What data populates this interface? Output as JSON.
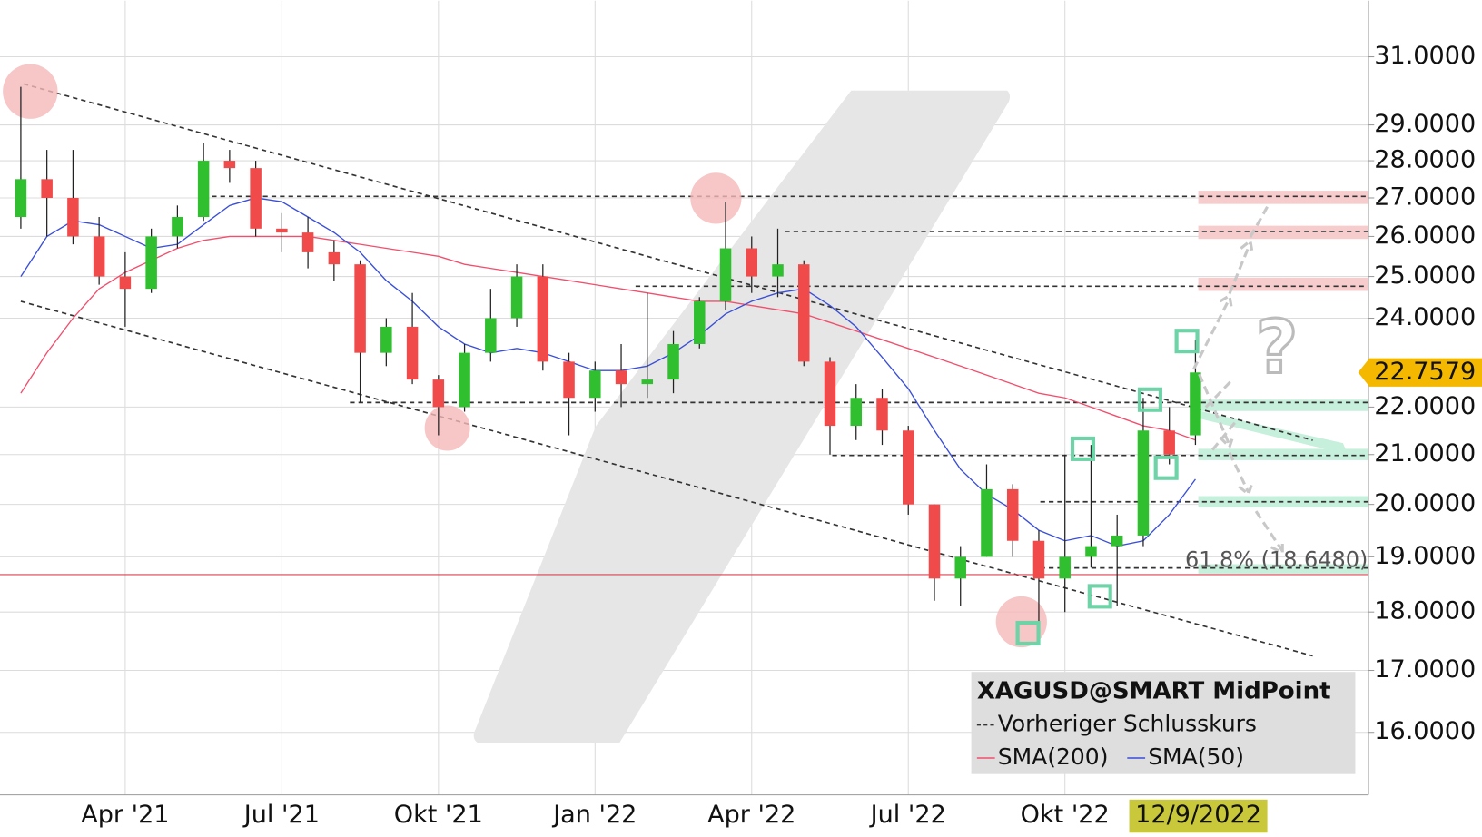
{
  "chart_data": {
    "type": "candlestick",
    "title": "XAGUSD@SMART MidPoint",
    "previous_close_label": "Vorheriger Schlusskurs",
    "categories": [
      null,
      null,
      null,
      null,
      "Apr '21",
      null,
      null,
      null,
      null,
      null,
      "Jul '21",
      null,
      null,
      null,
      null,
      null,
      "Okt '21",
      null,
      null,
      null,
      null,
      null,
      "Jan '22",
      null,
      null,
      null,
      null,
      null,
      "Apr '22",
      null,
      null,
      null,
      null,
      null,
      "Jul '22",
      null,
      null,
      null,
      null,
      null,
      "Okt '22",
      null,
      null,
      null,
      null,
      "12/9/2022"
    ],
    "open": [
      26.5,
      27.5,
      27.0,
      26.0,
      25.0,
      24.7,
      26.0,
      26.5,
      28.0,
      27.8,
      26.2,
      26.1,
      25.6,
      25.3,
      23.2,
      23.8,
      22.6,
      22.0,
      23.2,
      24.0,
      25.0,
      23.0,
      22.2,
      22.8,
      22.5,
      22.6,
      23.4,
      24.4,
      25.7,
      25.0,
      25.3,
      23.0,
      21.6,
      22.2,
      21.5,
      20.0,
      18.6,
      19.0,
      20.3,
      19.3,
      18.6,
      19.0,
      19.2,
      19.4,
      21.5,
      21.4
    ],
    "high": [
      30.1,
      28.3,
      28.3,
      26.5,
      25.6,
      26.2,
      26.8,
      28.5,
      28.3,
      28.0,
      26.6,
      26.5,
      25.9,
      25.4,
      24.0,
      24.6,
      22.7,
      23.4,
      24.7,
      25.3,
      25.3,
      23.2,
      23.0,
      23.4,
      24.6,
      23.7,
      24.5,
      26.9,
      26.0,
      26.2,
      25.4,
      23.1,
      22.5,
      22.4,
      21.6,
      20.0,
      19.2,
      20.8,
      20.4,
      19.5,
      21.0,
      21.2,
      19.8,
      22.2,
      22.0,
      23.5
    ],
    "low": [
      26.2,
      26.0,
      25.8,
      24.8,
      23.8,
      24.6,
      25.7,
      26.4,
      27.4,
      26.0,
      25.6,
      25.2,
      24.9,
      22.1,
      22.9,
      22.5,
      21.4,
      21.9,
      23.0,
      23.8,
      22.8,
      21.4,
      21.9,
      22.0,
      22.2,
      22.3,
      23.3,
      24.2,
      24.6,
      24.5,
      22.9,
      21.0,
      21.3,
      21.2,
      19.8,
      18.2,
      18.1,
      19.0,
      19.0,
      17.6,
      18.0,
      18.8,
      18.1,
      19.2,
      20.8,
      21.2
    ],
    "close": [
      27.5,
      27.0,
      26.0,
      25.0,
      24.7,
      26.0,
      26.5,
      28.0,
      27.8,
      26.2,
      26.1,
      25.6,
      25.3,
      23.2,
      23.8,
      22.6,
      22.0,
      23.2,
      24.0,
      25.0,
      23.0,
      22.2,
      22.8,
      22.5,
      22.6,
      23.4,
      24.4,
      25.7,
      25.0,
      25.3,
      23.0,
      21.6,
      22.2,
      21.5,
      20.0,
      18.6,
      19.0,
      20.3,
      19.3,
      18.6,
      19.0,
      19.2,
      19.4,
      21.5,
      21.0,
      22.7579
    ],
    "up_color": "#2fbf2f",
    "down_color": "#f04a4a",
    "series": [
      {
        "name": "SMA(200)",
        "color": "#f0506e",
        "values": [
          22.3,
          23.2,
          24.0,
          24.7,
          25.1,
          25.4,
          25.7,
          25.9,
          26.0,
          26.0,
          26.0,
          26.0,
          25.9,
          25.8,
          25.7,
          25.6,
          25.5,
          25.3,
          25.2,
          25.1,
          25.0,
          24.9,
          24.8,
          24.7,
          24.6,
          24.5,
          24.4,
          24.4,
          24.3,
          24.2,
          24.1,
          23.9,
          23.7,
          23.5,
          23.3,
          23.1,
          22.9,
          22.7,
          22.5,
          22.3,
          22.2,
          22.0,
          21.8,
          21.6,
          21.5,
          21.3
        ]
      },
      {
        "name": "SMA(50)",
        "color": "#3a4fd8",
        "values": [
          25.0,
          26.0,
          26.4,
          26.3,
          26.0,
          25.7,
          25.8,
          26.3,
          26.8,
          27.0,
          26.9,
          26.5,
          26.1,
          25.6,
          24.9,
          24.4,
          23.8,
          23.4,
          23.2,
          23.3,
          23.2,
          23.0,
          22.8,
          22.8,
          22.9,
          23.2,
          23.6,
          24.1,
          24.4,
          24.6,
          24.7,
          24.3,
          23.8,
          23.1,
          22.4,
          21.5,
          20.7,
          20.2,
          19.9,
          19.5,
          19.3,
          19.4,
          19.2,
          19.3,
          19.8,
          20.5
        ]
      }
    ],
    "ylim": [
      15.05,
      32.75
    ],
    "log_scale": true,
    "grid": true,
    "yticks": [
      {
        "value": 16,
        "label": "16.0000"
      },
      {
        "value": 17,
        "label": "17.0000"
      },
      {
        "value": 18,
        "label": "18.0000"
      },
      {
        "value": 19,
        "label": "19.0000"
      },
      {
        "value": 20,
        "label": "20.0000"
      },
      {
        "value": 21,
        "label": "21.0000"
      },
      {
        "value": 22,
        "label": "22.0000"
      },
      {
        "value": 24,
        "label": "24.0000"
      },
      {
        "value": 25,
        "label": "25.0000"
      },
      {
        "value": 26,
        "label": "26.0000"
      },
      {
        "value": 27,
        "label": "27.0000"
      },
      {
        "value": 28,
        "label": "28.0000"
      },
      {
        "value": 29,
        "label": "29.0000"
      },
      {
        "value": 31,
        "label": "31.0000"
      }
    ],
    "annotations": [
      "61.8% (18.6480)",
      "?"
    ]
  }
}
